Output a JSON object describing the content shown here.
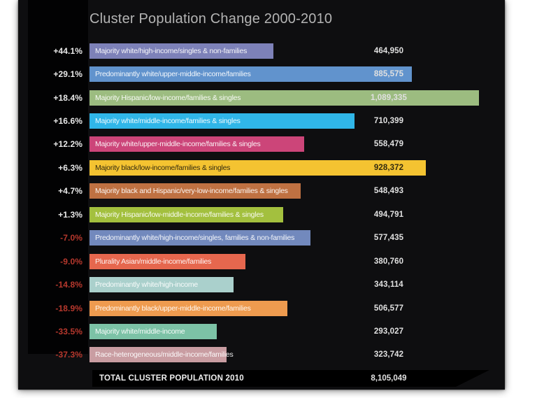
{
  "title": "Cluster Population Change 2000-2010",
  "colors": {
    "page_bg": "#ffffff",
    "canvas_bg": "#0e0e10",
    "label_column_bg": "#020203",
    "positive_pct_text": "#e9e9e9",
    "negative_pct_text": "#b7382d",
    "title_text": "#b4b4b4",
    "value_text": "#e0e0e0",
    "total_bar_bg": "#000000"
  },
  "chart_data": {
    "type": "bar",
    "orientation": "horizontal",
    "title": "Cluster Population Change 2000-2010",
    "rows": [
      {
        "pct": "+44.1%",
        "label": "Majority white/high-income/singles & non-families",
        "value": "464,950",
        "color": "#7d81b8",
        "dark_text": false
      },
      {
        "pct": "+29.1%",
        "label": "Predominantly white/upper-middle-income/families",
        "value": "885,575",
        "color": "#6193cd",
        "dark_text": false
      },
      {
        "pct": "+18.4%",
        "label": "Majority Hispanic/low-income/families & singles",
        "value": "1,089,335",
        "color": "#9cbc80",
        "dark_text": false
      },
      {
        "pct": "+16.6%",
        "label": "Majority white/middle-income/families & singles",
        "value": "710,399",
        "color": "#30b6e8",
        "dark_text": false
      },
      {
        "pct": "+12.2%",
        "label": "Majority white/upper-middle-income/families & singles",
        "value": "558,479",
        "color": "#cc4579",
        "dark_text": false
      },
      {
        "pct": "+6.3%",
        "label": "Majority black/low-income/families & singles",
        "value": "928,372",
        "color": "#f4c331",
        "dark_text": true
      },
      {
        "pct": "+4.7%",
        "label": "Majority black and Hispanic/very-low-income/families & singles",
        "value": "548,493",
        "color": "#bf7142",
        "dark_text": false
      },
      {
        "pct": "+1.3%",
        "label": "Majority Hispanic/low-middle-income/families & singles",
        "value": "494,791",
        "color": "#a3c03e",
        "dark_text": false
      },
      {
        "pct": "-7.0%",
        "label": "Predominantly white/high-income/singles, families & non-families",
        "value": "577,435",
        "color": "#7289bd",
        "dark_text": false
      },
      {
        "pct": "-9.0%",
        "label": "Plurality Asian/middle-income/families",
        "value": "380,760",
        "color": "#e6674e",
        "dark_text": false
      },
      {
        "pct": "-14.8%",
        "label": "Predominantly white/high-income",
        "value": "343,114",
        "color": "#aad0cc",
        "dark_text": false
      },
      {
        "pct": "-18.9%",
        "label": "Predominantly black/upper-middle-income/families",
        "value": "506,577",
        "color": "#ee9b4f",
        "dark_text": false
      },
      {
        "pct": "-33.5%",
        "label": "Majority white/middle-income",
        "value": "293,027",
        "color": "#7cc2a6",
        "dark_text": false
      },
      {
        "pct": "-37.3%",
        "label": "Race-heterogeneous/middle-income/families",
        "value": "323,742",
        "color": "#c99da2",
        "dark_text": false
      }
    ],
    "total": {
      "label": "TOTAL CLUSTER POPULATION 2010",
      "value": "8,105,049"
    }
  }
}
